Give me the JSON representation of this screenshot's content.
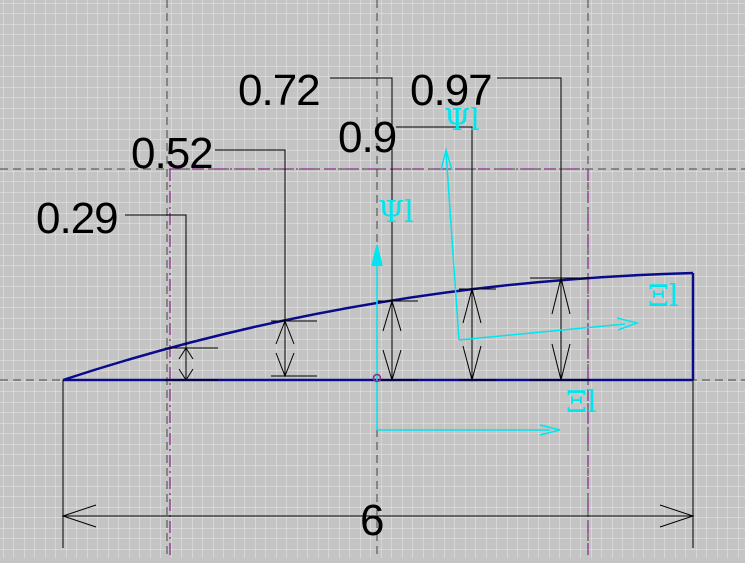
{
  "dimensions": {
    "h1": "0.29",
    "h2": "0.52",
    "h3": "0.72",
    "h4": "0.9",
    "h5": "0.97",
    "length": "6"
  },
  "symbols": {
    "psi_outer": "Ψl",
    "psi_inner": "Ψl",
    "xi_right": "Ξl",
    "xi_bottom": "Ξl"
  },
  "colors": {
    "background": "#c4c4c4",
    "grid_minor": "#e8e8e8",
    "grid_major": "#444444",
    "construction": "#8b2f8b",
    "profile": "#0a0a8a",
    "dimension": "#000000",
    "axes": "#00e5ee"
  }
}
